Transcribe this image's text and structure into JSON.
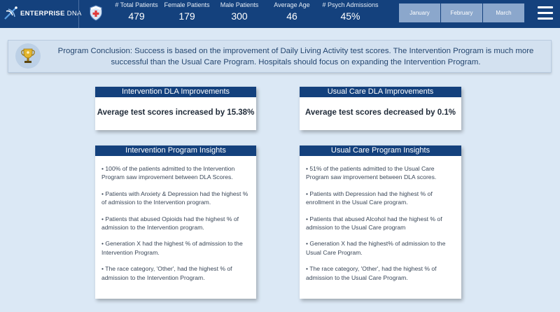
{
  "header": {
    "brand_main": "ENTERPRISE",
    "brand_accent": "DNA",
    "kpis": [
      {
        "label": "# Total Patients",
        "value": "479"
      },
      {
        "label": "Female Patients",
        "value": "179"
      },
      {
        "label": "Male Patients",
        "value": "300"
      },
      {
        "label": "Average Age",
        "value": "46"
      },
      {
        "label": "# Psych Admissions",
        "value": "45%"
      }
    ],
    "months": [
      "January",
      "February",
      "March"
    ],
    "colors": {
      "bar": "#14417d",
      "month_button": "#8ba7cc",
      "shield_cross": "#e03a3a"
    }
  },
  "banner": {
    "icon": "trophy-icon",
    "text": "Program Conclusion: Success is based on the improvement of Daily Living Activity test scores. The Intervention Program is much more successful than the Usual Care Program. Hospitals should focus on expanding the Intervention Program."
  },
  "improvements": {
    "intervention": {
      "title": "Intervention DLA Improvements",
      "headline": "Average test scores increased by 15.38%"
    },
    "usual": {
      "title": "Usual Care DLA Improvements",
      "headline": "Average test scores decreased by 0.1%"
    }
  },
  "insights": {
    "intervention": {
      "title": "Intervention Program Insights",
      "items": [
        "• 100% of the patients admitted to the Intervention Program saw improvement between DLA Scores.",
        "• Patients with Anxiety & Depression had the highest % of admission to the Intervention program.",
        "• Patients that abused Opioids had the highest % of admission to the Intervention program.",
        "• Generation X had the highest % of admission to the Intervention Program.",
        "• The race category, 'Other', had the highest % of admission to the Intervention Program."
      ]
    },
    "usual": {
      "title": "Usual Care Program Insights",
      "items": [
        "• 51% of the patients admitted to the Usual Care Program saw improvement between DLA scores.",
        "• Patients with Depression had the highest % of enrollment in the Usual Care program.",
        "• Patients that abused Alcohol had the highest % of admission to the Usual Care program",
        "• Generation X had the highest% of admission to the Usual Care Program.",
        "• The race category, 'Other', had the highest % of admission to the Usual Care Program."
      ]
    }
  }
}
